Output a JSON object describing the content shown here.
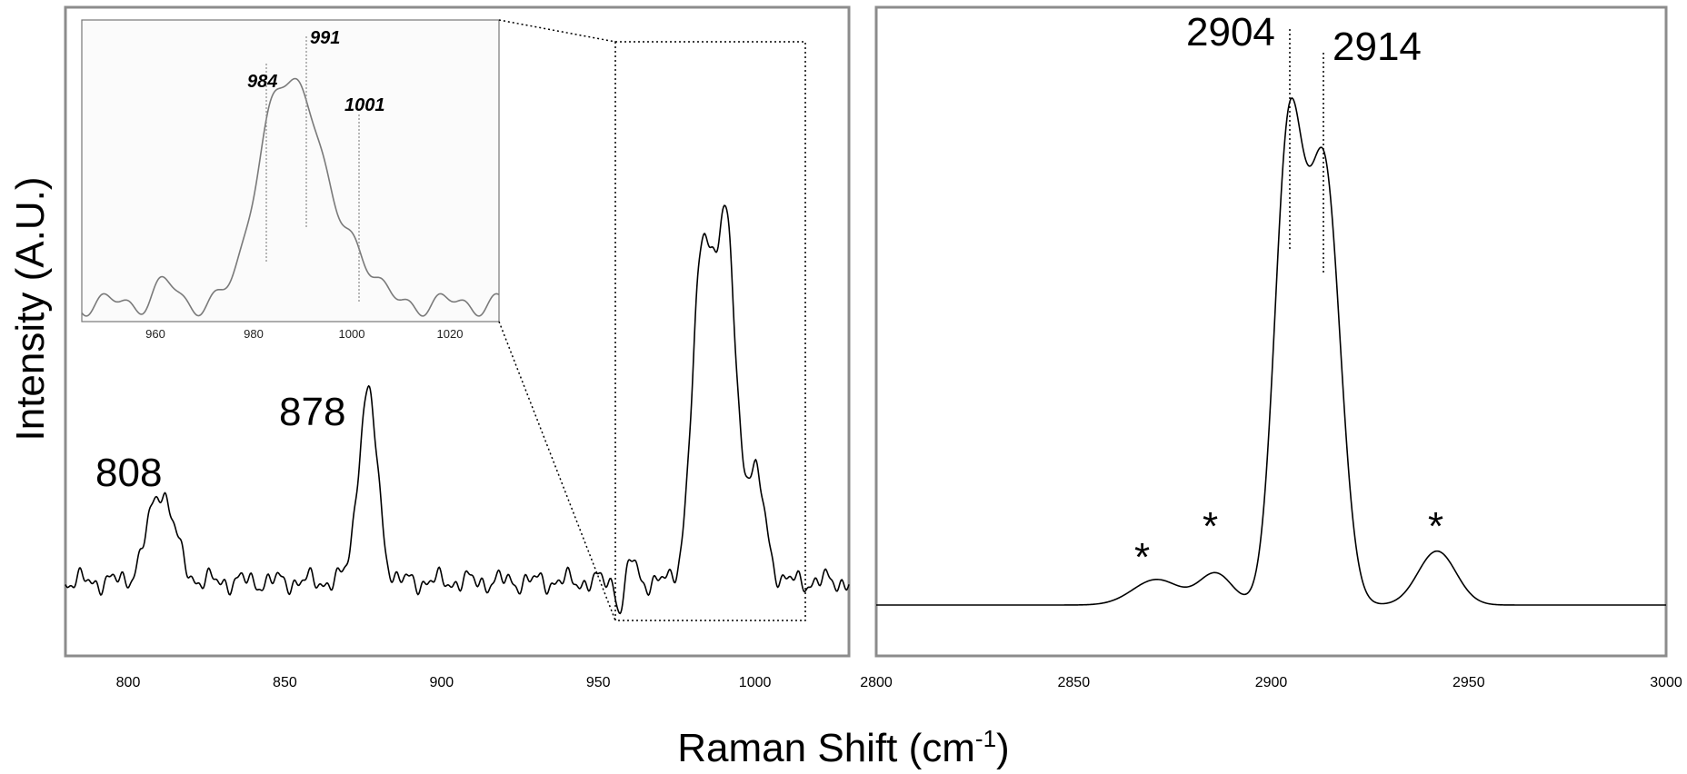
{
  "figure": {
    "xlabel_main": "Raman Shift (cm",
    "xlabel_sup": "-1",
    "xlabel_close": ")",
    "ylabel": "Intensity (A.U.)"
  },
  "chart_data": [
    {
      "type": "line",
      "panel": "left",
      "xlim": [
        780,
        1030
      ],
      "ticks": [
        800,
        850,
        900,
        950,
        1000
      ],
      "annotations": [
        {
          "x": 810,
          "label": "808"
        },
        {
          "x": 876,
          "label": "878"
        }
      ],
      "zoom_box_xrange": [
        956,
        1016
      ],
      "peaks": [
        {
          "x": 810,
          "y": 0.17
        },
        {
          "x": 876.5,
          "y": 0.35
        },
        {
          "x": 984,
          "y": 0.77
        },
        {
          "x": 991,
          "y": 0.9
        },
        {
          "x": 1001,
          "y": 0.29
        }
      ]
    },
    {
      "type": "line",
      "panel": "inset",
      "xlim": [
        945,
        1030
      ],
      "ticks": [
        960,
        980,
        1000,
        1020
      ],
      "annotations": [
        {
          "x": 984,
          "label": "984"
        },
        {
          "x": 991,
          "label": "991"
        },
        {
          "x": 1001,
          "label": "1001"
        }
      ]
    },
    {
      "type": "line",
      "panel": "right",
      "xlim": [
        2800,
        3000
      ],
      "ticks": [
        2800,
        2850,
        2900,
        2950,
        3000
      ],
      "annotations": [
        {
          "x": 2904,
          "label": "2904"
        },
        {
          "x": 2914,
          "label": "2914"
        }
      ],
      "markers": [
        {
          "x": 2868,
          "label": "*"
        },
        {
          "x": 2885,
          "label": "*"
        },
        {
          "x": 2942,
          "label": "*"
        }
      ],
      "peaks": [
        {
          "x": 2872,
          "y": 0.04
        },
        {
          "x": 2887,
          "y": 0.095
        },
        {
          "x": 2904.5,
          "y": 0.96
        },
        {
          "x": 2913.5,
          "y": 0.92
        },
        {
          "x": 2942,
          "y": 0.095
        }
      ]
    }
  ]
}
